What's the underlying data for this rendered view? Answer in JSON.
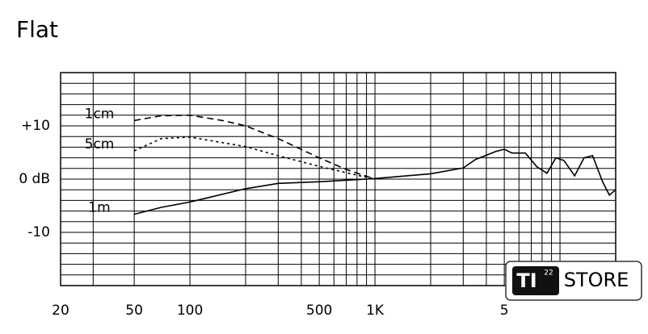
{
  "chart_data": {
    "type": "line",
    "title": "Flat",
    "xscale": "log",
    "xlim": [
      20,
      20000
    ],
    "ylim": [
      -20,
      20
    ],
    "xticks": [
      20,
      50,
      100,
      500,
      {
        "value": 1000,
        "label": "1K"
      },
      {
        "value": 5000,
        "label": "5"
      }
    ],
    "yticks": [
      {
        "value": 10,
        "label": "+10"
      },
      {
        "value": 0,
        "label": "0 dB"
      },
      -10
    ],
    "xgrid": [
      20,
      30,
      50,
      100,
      200,
      300,
      400,
      500,
      600,
      700,
      800,
      900,
      1000,
      2000,
      3000,
      4000,
      5000,
      6000,
      7000,
      8000,
      9000,
      10000,
      20000
    ],
    "ygrid": [
      -20,
      -18,
      -16,
      -14,
      -12,
      -10,
      -8,
      -6,
      -4,
      -2,
      0,
      2,
      4,
      6,
      8,
      10,
      12,
      14,
      16,
      18,
      20
    ],
    "color": "#000000",
    "series": [
      {
        "name": "1cm",
        "style": "dashed",
        "x": [
          50,
          70,
          100,
          150,
          200,
          300,
          500,
          700,
          1000
        ],
        "values": [
          11,
          11.9,
          12,
          11,
          10,
          7.6,
          4,
          1.8,
          0
        ]
      },
      {
        "name": "5cm",
        "style": "dotted",
        "x": [
          50,
          70,
          100,
          200,
          300,
          500,
          700,
          1000
        ],
        "values": [
          5.3,
          7.6,
          7.9,
          6.1,
          4.4,
          2.4,
          1.2,
          0
        ]
      },
      {
        "name": "1m",
        "style": "solid",
        "x": [
          50,
          70,
          100,
          200,
          300,
          500,
          1000,
          2000,
          3000,
          3500,
          4500,
          5000,
          5500,
          6500,
          7500,
          8500,
          9500,
          10500,
          12000,
          13500,
          15000,
          17000,
          18500,
          20000
        ],
        "values": [
          -6.6,
          -5.3,
          -4.3,
          -1.8,
          -0.8,
          -0.5,
          0.1,
          1,
          2.1,
          3.7,
          5.2,
          5.6,
          4.9,
          4.9,
          2.3,
          1.1,
          4,
          3.5,
          0.6,
          4,
          4.4,
          -0.5,
          -3,
          -2
        ]
      }
    ]
  },
  "watermark": {
    "badge": "TI",
    "superscript": "22",
    "text": "STORE"
  }
}
